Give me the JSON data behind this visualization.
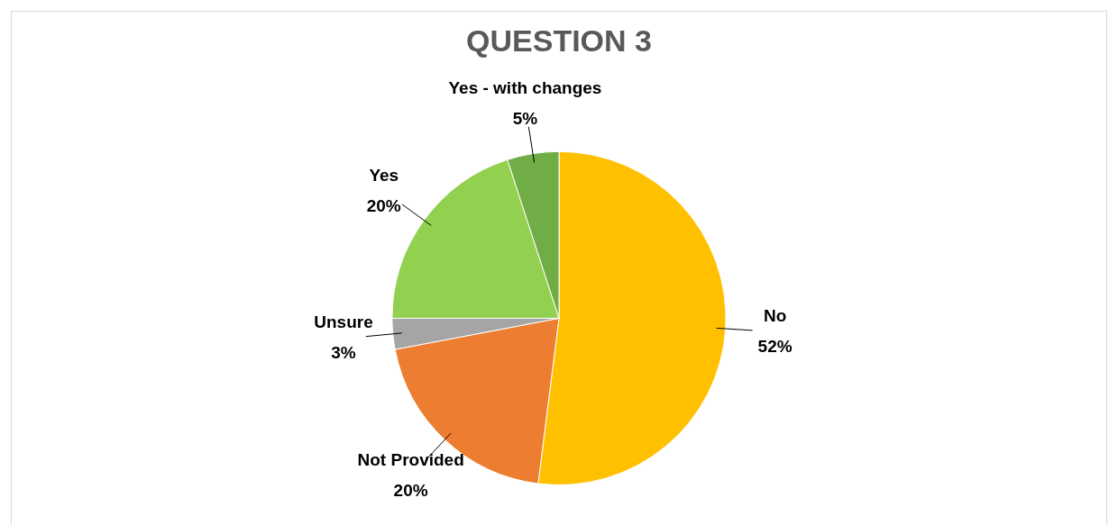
{
  "chart_data": {
    "type": "pie",
    "title": "QUESTION 3",
    "categories": [
      "No",
      "Not Provided",
      "Unsure",
      "Yes",
      "Yes - with changes"
    ],
    "values": [
      52,
      20,
      3,
      20,
      5
    ],
    "colors": [
      "#ffc000",
      "#ed7d31",
      "#a5a5a5",
      "#92d050",
      "#70ad47"
    ],
    "value_labels": [
      "52%",
      "20%",
      "3%",
      "20%",
      "5%"
    ],
    "legend": false
  }
}
